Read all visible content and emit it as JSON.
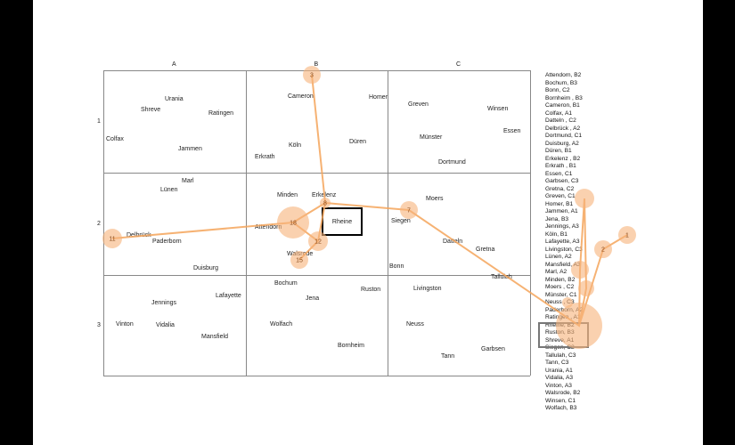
{
  "grid": {
    "columns": [
      "A",
      "B",
      "C"
    ],
    "rows": [
      "1",
      "2",
      "3"
    ]
  },
  "places": [
    {
      "name": "Urania"
    },
    {
      "name": "Shreve"
    },
    {
      "name": "Ratingen"
    },
    {
      "name": "Colfax"
    },
    {
      "name": "Jammen"
    },
    {
      "name": "Cameron"
    },
    {
      "name": "Homer"
    },
    {
      "name": "Köln"
    },
    {
      "name": "Düren"
    },
    {
      "name": "Erkrath"
    },
    {
      "name": "Greven"
    },
    {
      "name": "Winsen"
    },
    {
      "name": "Essen"
    },
    {
      "name": "Münster"
    },
    {
      "name": "Dortmund"
    },
    {
      "name": "Marl"
    },
    {
      "name": "Lünen"
    },
    {
      "name": "Delbrück"
    },
    {
      "name": "Paderborn"
    },
    {
      "name": "Duisburg"
    },
    {
      "name": "Minden"
    },
    {
      "name": "Erkelenz"
    },
    {
      "name": "Attendorn"
    },
    {
      "name": "Walsrode"
    },
    {
      "name": "Moers"
    },
    {
      "name": "Siegen"
    },
    {
      "name": "Datteln"
    },
    {
      "name": "Gretna"
    },
    {
      "name": "Bonn"
    },
    {
      "name": "Tallulah"
    },
    {
      "name": "Jennings"
    },
    {
      "name": "Lafayette"
    },
    {
      "name": "Vinton"
    },
    {
      "name": "Vidalia"
    },
    {
      "name": "Mansfield"
    },
    {
      "name": "Bochum"
    },
    {
      "name": "Jena"
    },
    {
      "name": "Ruston"
    },
    {
      "name": "Wolfach"
    },
    {
      "name": "Bornheim"
    },
    {
      "name": "Livingston"
    },
    {
      "name": "Neuss"
    },
    {
      "name": "Tann"
    },
    {
      "name": "Garbsen"
    }
  ],
  "selected_place": "Rheine",
  "index": [
    "Attendorn, B2",
    "Bochum, B3",
    "Bonn, C2",
    "Bornheim , B3",
    "Cameron, B1",
    "Colfax, A1",
    "Datteln , C2",
    "Delbrück , A2",
    "Dortmund, C1",
    "Duisburg, A2",
    "Düren, B1",
    "Erkelenz , B2",
    "Erkrath , B1",
    "Essen, C1",
    "Garbsen, C3",
    "Gretna, C2",
    "Greven, C1",
    "Homer, B1",
    "Jammen, A1",
    "Jena, B3",
    "Jennings, A3",
    "Köln, B1",
    "Lafayette, A3",
    "Livingston, C3",
    "Lünen, A2",
    "Mansfield, A3",
    "Marl, A2",
    "Minden, B2",
    "Moers , C2",
    "Münster, C1",
    "Neuss , C3",
    "Paderborn, A2",
    "Ratingen , A1",
    "Rheine, B2",
    "Ruston, B3",
    "Shreve, A1",
    "Siegen, C2",
    "Tallulah, C3",
    "Tann, C3",
    "Urania, A1",
    "Vidalia, A3",
    "Vinton, A3",
    "Walsrode, B2",
    "Winsen, C1",
    "Wolfach, B3"
  ],
  "fixations": [
    {
      "n": "3"
    },
    {
      "n": "8"
    },
    {
      "n": "18"
    },
    {
      "n": "12"
    },
    {
      "n": "15"
    },
    {
      "n": "11"
    },
    {
      "n": "7"
    },
    {
      "n": ""
    },
    {
      "n": ""
    },
    {
      "n": ""
    },
    {
      "n": ""
    },
    {
      "n": "2"
    },
    {
      "n": "1"
    },
    {
      "n": ""
    }
  ],
  "colors": {
    "scanpath": "#f4a45a",
    "fixation_fill": "#f7b27a",
    "selected_box": "#000000",
    "index_box": "#777777"
  }
}
